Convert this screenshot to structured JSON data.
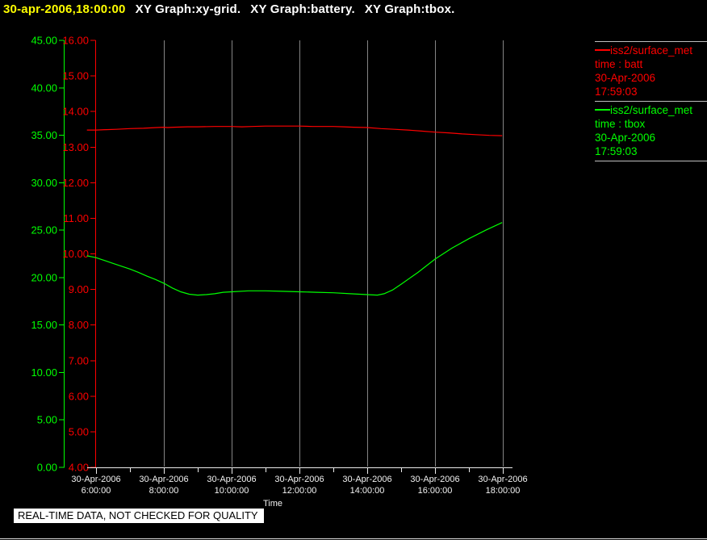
{
  "title_bar": {
    "timestamp": "30-apr-2006,18:00:00",
    "graph_titles": [
      "XY Graph:xy-grid.",
      "XY Graph:battery.",
      "XY Graph:tbox."
    ]
  },
  "legend": {
    "entries": [
      {
        "color": "#ff0000",
        "source": "iss2/surface_met",
        "variable": "time : batt",
        "date": "30-Apr-2006",
        "time": "17:59:03"
      },
      {
        "color": "#00ff00",
        "source": "iss2/surface_met",
        "variable": "time : tbox",
        "date": "30-Apr-2006",
        "time": "17:59:03"
      }
    ]
  },
  "footer": {
    "notice": "REAL-TIME DATA, NOT CHECKED FOR QUALITY"
  },
  "colors": {
    "background": "#000000",
    "timestamp": "#ffff00",
    "title_text": "#ffffff",
    "gridline": "#858585",
    "x_axis": "#ececec",
    "x_labels": "#f2f2f2",
    "batt": "#ff0000",
    "tbox": "#00ff00",
    "separator": "#bdbdbd"
  },
  "chart_data": {
    "type": "line",
    "title": "",
    "xlabel": "Time",
    "grid": "vertical-only",
    "legend_position": "top-right",
    "x_axis": {
      "unit": "time-of-day",
      "start_hour": 5.73,
      "end_hour": 18,
      "major_tick_hours": [
        6,
        8,
        10,
        12,
        14,
        16,
        18
      ],
      "minor_tick_hours": [
        7,
        9,
        11,
        13,
        15,
        17
      ],
      "grid_hours": [
        8,
        10,
        12,
        14,
        16,
        18
      ],
      "tick_label_date": "30-Apr-2006",
      "tick_label_times": [
        "6:00:00",
        "8:00:00",
        "10:00:00",
        "12:00:00",
        "14:00:00",
        "16:00:00",
        "18:00:00"
      ]
    },
    "y_axes": [
      {
        "id": "tbox",
        "color": "#00ff00",
        "min": 0,
        "max": 45,
        "tick_step": 5,
        "tick_labels": [
          "0.00",
          "5.00",
          "10.00",
          "15.00",
          "20.00",
          "25.00",
          "30.00",
          "35.00",
          "40.00",
          "45.00"
        ]
      },
      {
        "id": "batt",
        "color": "#ff0000",
        "min": 4,
        "max": 16,
        "tick_step": 1,
        "tick_labels": [
          "4.00",
          "5.00",
          "6.00",
          "7.00",
          "8.00",
          "9.00",
          "10.00",
          "11.00",
          "12.00",
          "13.00",
          "14.00",
          "15.00",
          "16.00"
        ]
      }
    ],
    "series": [
      {
        "name": "batt",
        "axis": "batt",
        "color": "#ff0000",
        "points": [
          [
            5.73,
            13.48
          ],
          [
            6,
            13.48
          ],
          [
            6.3,
            13.49
          ],
          [
            6.6,
            13.5
          ],
          [
            7,
            13.52
          ],
          [
            7.4,
            13.53
          ],
          [
            7.8,
            13.55
          ],
          [
            8,
            13.56
          ],
          [
            8.1,
            13.55
          ],
          [
            8.3,
            13.56
          ],
          [
            8.7,
            13.57
          ],
          [
            9,
            13.57
          ],
          [
            9.5,
            13.58
          ],
          [
            10,
            13.58
          ],
          [
            10.3,
            13.57
          ],
          [
            10.6,
            13.58
          ],
          [
            11,
            13.59
          ],
          [
            11.5,
            13.59
          ],
          [
            12,
            13.59
          ],
          [
            12.4,
            13.58
          ],
          [
            12.8,
            13.58
          ],
          [
            13,
            13.58
          ],
          [
            13.3,
            13.57
          ],
          [
            13.6,
            13.56
          ],
          [
            14,
            13.55
          ],
          [
            14.4,
            13.52
          ],
          [
            14.8,
            13.5
          ],
          [
            15.2,
            13.48
          ],
          [
            15.6,
            13.45
          ],
          [
            16,
            13.42
          ],
          [
            16.4,
            13.4
          ],
          [
            16.8,
            13.37
          ],
          [
            17.2,
            13.35
          ],
          [
            17.6,
            13.33
          ],
          [
            17.98,
            13.32
          ]
        ]
      },
      {
        "name": "tbox",
        "axis": "tbox",
        "color": "#00ff00",
        "points": [
          [
            5.73,
            22.3
          ],
          [
            6,
            22.1
          ],
          [
            6.25,
            21.8
          ],
          [
            6.5,
            21.5
          ],
          [
            6.75,
            21.2
          ],
          [
            7,
            20.9
          ],
          [
            7.25,
            20.55
          ],
          [
            7.5,
            20.15
          ],
          [
            7.75,
            19.8
          ],
          [
            8,
            19.4
          ],
          [
            8.25,
            18.9
          ],
          [
            8.5,
            18.5
          ],
          [
            8.75,
            18.25
          ],
          [
            9,
            18.15
          ],
          [
            9.25,
            18.2
          ],
          [
            9.5,
            18.3
          ],
          [
            9.75,
            18.45
          ],
          [
            10,
            18.5
          ],
          [
            10.5,
            18.6
          ],
          [
            11,
            18.6
          ],
          [
            11.5,
            18.55
          ],
          [
            12,
            18.5
          ],
          [
            12.5,
            18.45
          ],
          [
            13,
            18.4
          ],
          [
            13.5,
            18.3
          ],
          [
            14,
            18.2
          ],
          [
            14.3,
            18.15
          ],
          [
            14.5,
            18.3
          ],
          [
            14.75,
            18.7
          ],
          [
            15,
            19.3
          ],
          [
            15.5,
            20.55
          ],
          [
            16,
            21.95
          ],
          [
            16.5,
            23.1
          ],
          [
            17,
            24.1
          ],
          [
            17.5,
            25.0
          ],
          [
            17.98,
            25.8
          ]
        ]
      }
    ]
  }
}
